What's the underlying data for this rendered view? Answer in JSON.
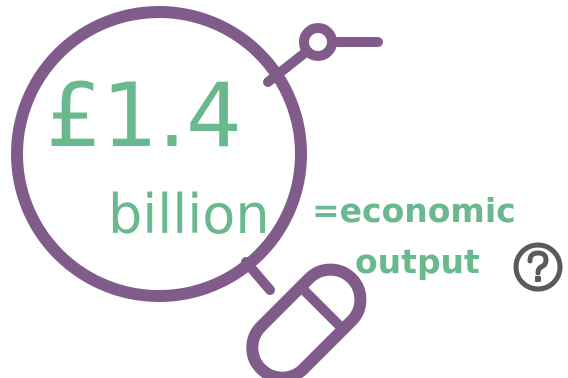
{
  "figure": {
    "amount": "£1.4",
    "unit": "billion",
    "caption_line1": "=economic",
    "caption_line2": "output",
    "help_icon": "question-circle-icon",
    "colors": {
      "magnifier": "#815C8A",
      "text_green": "#6AB88E",
      "icon_grey": "#5A5A5A"
    }
  }
}
